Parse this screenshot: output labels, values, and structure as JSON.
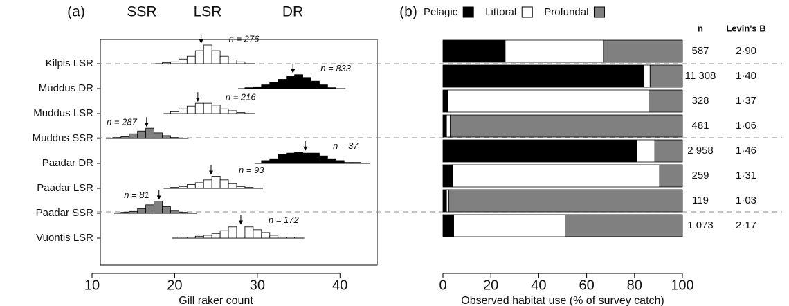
{
  "chart_data": [
    {
      "type": "histogram",
      "panel_label": "(a)",
      "group_labels": [
        "SSR",
        "LSR",
        "DR"
      ],
      "x_label": "Gill raker count",
      "xlim": [
        10,
        45
      ],
      "xticks": [
        10,
        20,
        30,
        40
      ],
      "series": [
        {
          "name": "Kilpis LSR",
          "color": "#ffffff",
          "bins": [
            18.5,
            19.5,
            20.5,
            21.5,
            22.5,
            23.5,
            24.5,
            25.5,
            26.5,
            27.5,
            28.5
          ],
          "counts": [
            1,
            2,
            5,
            8,
            14,
            20,
            14,
            8,
            4,
            2
          ],
          "mean": 23.2,
          "n": 276,
          "n_label": "n = 276"
        },
        {
          "name": "Muddus DR",
          "color": "#000000",
          "bins": [
            28.5,
            29.5,
            30.5,
            31.5,
            32.5,
            33.5,
            34.5,
            35.5,
            36.5,
            37.5,
            38.5,
            39.5
          ],
          "counts": [
            1,
            2,
            4,
            7,
            10,
            13,
            15,
            12,
            8,
            4,
            1
          ],
          "mean": 34.3,
          "n": 833,
          "n_label": "n = 833"
        },
        {
          "name": "Muddus LSR",
          "color": "#ffffff",
          "bins": [
            19.5,
            20.5,
            21.5,
            22.5,
            23.5,
            24.5,
            25.5,
            26.5,
            27.5,
            28.5
          ],
          "counts": [
            2,
            5,
            8,
            11,
            11,
            9,
            5,
            3,
            1
          ],
          "mean": 22.8,
          "n": 216,
          "n_label": "n = 216"
        },
        {
          "name": "Muddus SSR",
          "color": "#808080",
          "bins": [
            12.5,
            13.5,
            14.5,
            15.5,
            16.5,
            17.5,
            18.5,
            19.5,
            20.5
          ],
          "counts": [
            1,
            2,
            5,
            8,
            11,
            6,
            3,
            1
          ],
          "mean": 16.6,
          "n": 287,
          "n_label": "n = 287"
        },
        {
          "name": "Paadar DR",
          "color": "#000000",
          "bins": [
            30.5,
            31.5,
            32.5,
            33.5,
            34.5,
            35.5,
            36.5,
            37.5,
            38.5,
            39.5,
            40.5,
            41.5,
            42.5
          ],
          "counts": [
            3,
            5,
            10,
            11,
            12,
            11,
            11,
            8,
            5,
            3,
            1,
            1
          ],
          "mean": 35.8,
          "n": 37,
          "n_label": "n = 37"
        },
        {
          "name": "Paadar LSR",
          "color": "#ffffff",
          "bins": [
            19.5,
            20.5,
            21.5,
            22.5,
            23.5,
            24.5,
            25.5,
            26.5,
            27.5,
            28.5,
            29.5
          ],
          "counts": [
            1,
            2,
            4,
            6,
            9,
            13,
            9,
            5,
            2,
            1
          ],
          "mean": 24.4,
          "n": 93,
          "n_label": "n = 93"
        },
        {
          "name": "Paadar SSR",
          "color": "#808080",
          "bins": [
            13.5,
            14.5,
            15.5,
            16.5,
            17.5,
            18.5,
            19.5,
            20.5,
            21.5
          ],
          "counts": [
            1,
            2,
            5,
            9,
            13,
            7,
            3,
            1
          ],
          "mean": 18.1,
          "n": 81,
          "n_label": "n = 81"
        },
        {
          "name": "Vuontis LSR",
          "color": "#ffffff",
          "bins": [
            20.5,
            21.5,
            22.5,
            23.5,
            24.5,
            25.5,
            26.5,
            27.5,
            28.5,
            29.5,
            30.5,
            31.5,
            32.5,
            33.5,
            34.5
          ],
          "counts": [
            1,
            1,
            2,
            3,
            5,
            8,
            12,
            13,
            12,
            9,
            6,
            3,
            1,
            1
          ],
          "mean": 28.0,
          "n": 172,
          "n_label": "n = 172"
        }
      ]
    },
    {
      "type": "stacked-bar",
      "panel_label": "(b)",
      "x_label": "Observed habitat use (% of survey catch)",
      "xlim": [
        0,
        100
      ],
      "xticks": [
        0,
        20,
        40,
        60,
        80,
        100
      ],
      "series": [
        {
          "name": "Pelagic",
          "color": "#000000",
          "values": [
            26,
            84,
            2,
            1.5,
            81,
            4,
            1.5,
            4.5
          ]
        },
        {
          "name": "Littoral",
          "color": "#ffffff",
          "values": [
            41,
            2.5,
            84,
            1.5,
            7.5,
            86.5,
            1,
            46.5
          ]
        },
        {
          "name": "Profundal",
          "color": "#808080",
          "values": [
            33,
            13.5,
            14,
            97,
            11.5,
            9.5,
            97.5,
            49
          ]
        }
      ],
      "columns": [
        {
          "header": "n",
          "values": [
            587,
            11308,
            328,
            481,
            2958,
            259,
            119,
            1073
          ],
          "value_labels": [
            "587",
            "11 308",
            "328",
            "481",
            "2 958",
            "259",
            "119",
            "1 073"
          ]
        },
        {
          "header": "Levin's B",
          "values": [
            2.9,
            1.4,
            1.37,
            1.06,
            1.46,
            1.31,
            1.03,
            2.17
          ],
          "value_labels": [
            "2·90",
            "1·40",
            "1·37",
            "1·06",
            "1·46",
            "1·31",
            "1·03",
            "2·17"
          ]
        }
      ]
    }
  ]
}
